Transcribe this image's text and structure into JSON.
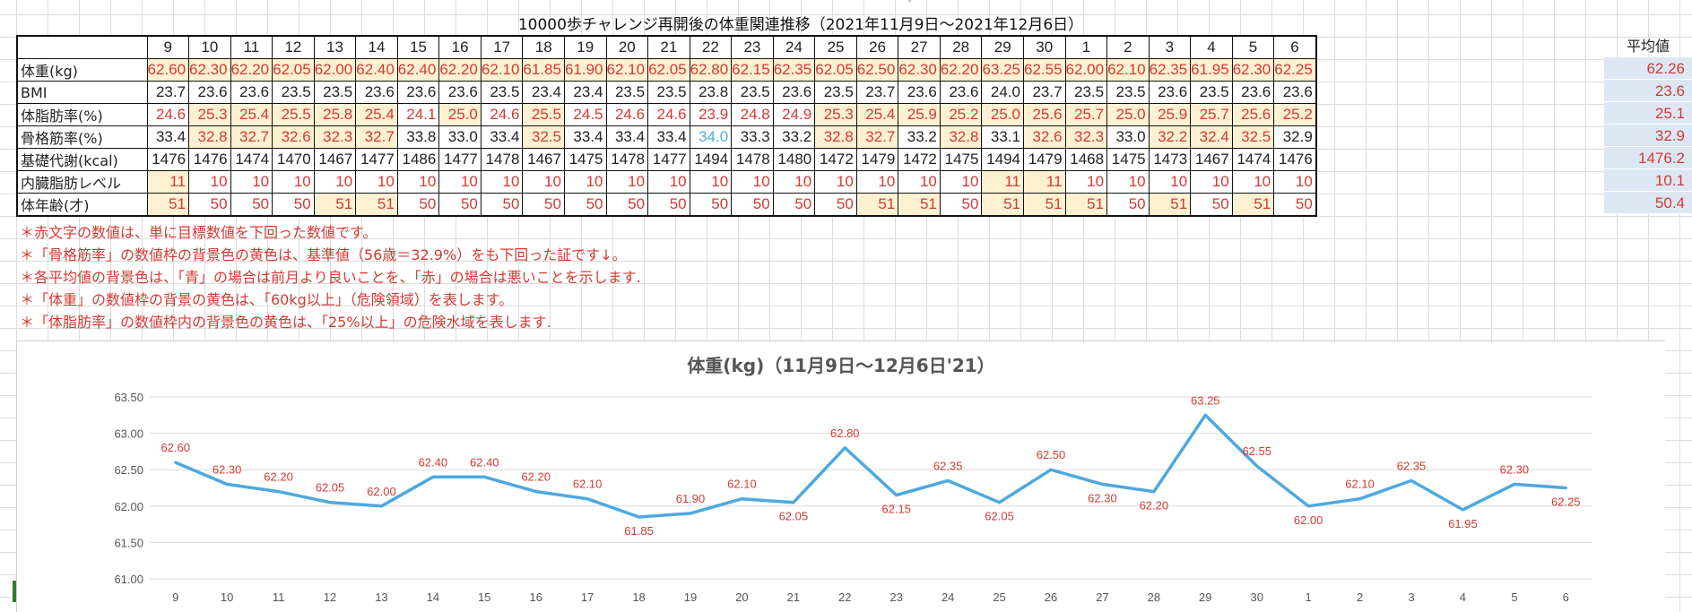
{
  "sheet": {
    "title": "10000歩チャレンジ再開後の体重関連推移（2021年11月9日～2021年12月6日）",
    "avg_header": "平均値",
    "days": [
      "9",
      "10",
      "11",
      "12",
      "13",
      "14",
      "15",
      "16",
      "17",
      "18",
      "19",
      "20",
      "21",
      "22",
      "23",
      "24",
      "25",
      "26",
      "27",
      "28",
      "29",
      "30",
      "1",
      "2",
      "3",
      "4",
      "5",
      "6"
    ]
  },
  "rows": [
    {
      "label": "体重(kg)",
      "values": [
        "62.60",
        "62.30",
        "62.20",
        "62.05",
        "62.00",
        "62.40",
        "62.40",
        "62.20",
        "62.10",
        "61.85",
        "61.90",
        "62.10",
        "62.05",
        "62.80",
        "62.15",
        "62.35",
        "62.05",
        "62.50",
        "62.30",
        "62.20",
        "63.25",
        "62.55",
        "62.00",
        "62.10",
        "62.35",
        "61.95",
        "62.30",
        "62.25"
      ],
      "avg": "62.26"
    },
    {
      "label": "BMI",
      "values": [
        "23.7",
        "23.6",
        "23.6",
        "23.5",
        "23.5",
        "23.6",
        "23.6",
        "23.6",
        "23.5",
        "23.4",
        "23.4",
        "23.5",
        "23.5",
        "23.8",
        "23.5",
        "23.6",
        "23.5",
        "23.7",
        "23.6",
        "23.6",
        "24.0",
        "23.7",
        "23.5",
        "23.5",
        "23.6",
        "23.5",
        "23.6",
        "23.6"
      ],
      "avg": "23.6"
    },
    {
      "label": "体脂肪率(%)",
      "values": [
        "24.6",
        "25.3",
        "25.4",
        "25.5",
        "25.8",
        "25.4",
        "24.1",
        "25.0",
        "24.6",
        "25.5",
        "24.5",
        "24.6",
        "24.6",
        "23.9",
        "24.8",
        "24.9",
        "25.3",
        "25.4",
        "25.9",
        "25.2",
        "25.0",
        "25.6",
        "25.7",
        "25.0",
        "25.9",
        "25.7",
        "25.6",
        "25.2"
      ],
      "avg": "25.1"
    },
    {
      "label": "骨格筋率(%)",
      "values": [
        "33.4",
        "32.8",
        "32.7",
        "32.6",
        "32.3",
        "32.7",
        "33.8",
        "33.0",
        "33.4",
        "32.5",
        "33.4",
        "33.4",
        "33.4",
        "34.0",
        "33.3",
        "33.2",
        "32.8",
        "32.7",
        "33.2",
        "32.8",
        "33.1",
        "32.6",
        "32.3",
        "33.0",
        "32.2",
        "32.4",
        "32.5",
        "32.9"
      ],
      "avg": "32.9"
    },
    {
      "label": "基礎代謝(kcal)",
      "values": [
        "1476",
        "1476",
        "1474",
        "1470",
        "1467",
        "1477",
        "1486",
        "1477",
        "1478",
        "1467",
        "1475",
        "1478",
        "1477",
        "1494",
        "1478",
        "1480",
        "1472",
        "1479",
        "1472",
        "1475",
        "1494",
        "1479",
        "1468",
        "1475",
        "1473",
        "1467",
        "1474",
        "1476"
      ],
      "avg": "1476.2"
    },
    {
      "label": "内臓脂肪レベル",
      "values": [
        "11",
        "10",
        "10",
        "10",
        "10",
        "10",
        "10",
        "10",
        "10",
        "10",
        "10",
        "10",
        "10",
        "10",
        "10",
        "10",
        "10",
        "10",
        "10",
        "10",
        "11",
        "11",
        "10",
        "10",
        "10",
        "10",
        "10",
        "10"
      ],
      "avg": "10.1"
    },
    {
      "label": "体年齢(才)",
      "values": [
        "51",
        "50",
        "50",
        "50",
        "51",
        "51",
        "50",
        "50",
        "50",
        "50",
        "50",
        "50",
        "50",
        "50",
        "50",
        "50",
        "50",
        "51",
        "51",
        "50",
        "51",
        "51",
        "51",
        "50",
        "51",
        "50",
        "51",
        "50"
      ],
      "avg": "50.4"
    }
  ],
  "notes": [
    "＊赤文字の数値は、単に目標数値を下回った数値です。",
    "＊「骨格筋率」の数値枠の背景色の黄色は、基準値（56歳＝32.9%）をも下回った証です↓。",
    "＊各平均値の背景色は、「青」の場合は前月より良いことを、「赤」の場合は悪いことを示します.",
    "＊「体重」の数値枠の背景の黄色は、「60kg以上」（危険領域）を表します。",
    "＊「体脂肪率」の数値枠内の背景色の黄色は、「25%以上」の危険水域を表します."
  ],
  "colors": {
    "red_text": "#d43a32",
    "blue_text": "#4bb0dc",
    "highlight_bg": "#fdf1d2",
    "avg_bg": "#dde7f4",
    "line": "#4ea8de"
  },
  "chart_data": {
    "type": "line",
    "title": "体重(kg)（11月9日～12月6日'21）",
    "categories": [
      "9",
      "10",
      "11",
      "12",
      "13",
      "14",
      "15",
      "16",
      "17",
      "18",
      "19",
      "20",
      "21",
      "22",
      "23",
      "24",
      "25",
      "26",
      "27",
      "28",
      "29",
      "30",
      "1",
      "2",
      "3",
      "4",
      "5",
      "6"
    ],
    "series": [
      {
        "values": [
          62.6,
          62.3,
          62.2,
          62.05,
          62.0,
          62.4,
          62.4,
          62.2,
          62.1,
          61.85,
          61.9,
          62.1,
          62.05,
          62.8,
          62.15,
          62.35,
          62.05,
          62.5,
          62.3,
          62.2,
          63.25,
          62.55,
          62.0,
          62.1,
          62.35,
          61.95,
          62.3,
          62.25
        ]
      }
    ],
    "data_labels": [
      "62.60",
      "62.30",
      "62.20",
      "62.05",
      "62.00",
      "62.40",
      "62.40",
      "62.20",
      "62.10",
      "61.85",
      "61.90",
      "62.10",
      "62.05",
      "62.80",
      "62.15",
      "62.35",
      "62.05",
      "62.50",
      "62.30",
      "62.20",
      "63.25",
      "62.55",
      "62.00",
      "62.10",
      "62.35",
      "61.95",
      "62.30",
      "62.25"
    ],
    "label_positions": [
      "above",
      "above",
      "above",
      "above",
      "above",
      "above",
      "above",
      "above",
      "above",
      "below",
      "above",
      "above",
      "below",
      "above",
      "below",
      "above",
      "below",
      "above",
      "below",
      "below",
      "above",
      "above",
      "below",
      "above",
      "above",
      "below",
      "above",
      "below"
    ],
    "ylim": [
      61.0,
      63.5
    ],
    "yticks": [
      "61.00",
      "61.50",
      "62.00",
      "62.50",
      "63.00",
      "63.50"
    ],
    "grid": true
  }
}
